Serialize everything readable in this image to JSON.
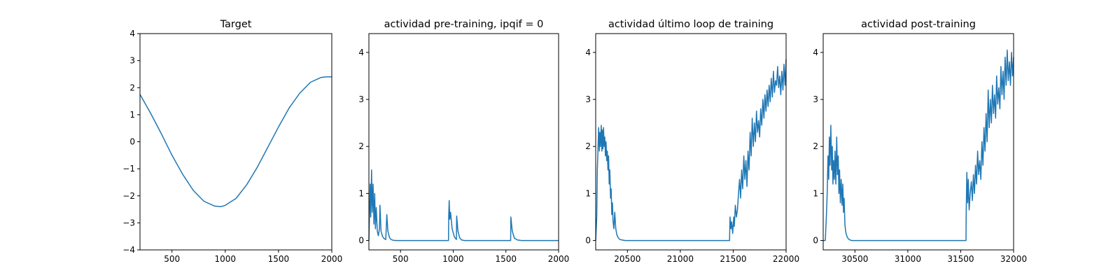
{
  "chart_data": [
    {
      "type": "line",
      "title": "Target",
      "xlim": [
        200,
        2000
      ],
      "ylim": [
        -4,
        4
      ],
      "xticks": [
        500,
        1000,
        1500,
        2000
      ],
      "yticks": [
        -4,
        -3,
        -2,
        -1,
        0,
        1,
        2,
        3,
        4
      ],
      "series": [
        {
          "color": "#1f77b4",
          "x": [
            200,
            300,
            400,
            500,
            600,
            700,
            800,
            900,
            960,
            1000,
            1100,
            1200,
            1300,
            1400,
            1500,
            1600,
            1700,
            1800,
            1900,
            1950,
            2000
          ],
          "y": [
            1.75,
            1.05,
            0.3,
            -0.5,
            -1.2,
            -1.8,
            -2.2,
            -2.38,
            -2.4,
            -2.35,
            -2.1,
            -1.6,
            -0.95,
            -0.2,
            0.55,
            1.25,
            1.8,
            2.2,
            2.38,
            2.4,
            2.4
          ]
        }
      ]
    },
    {
      "type": "line",
      "title": "actividad pre-training, ipqif = 0",
      "xlim": [
        200,
        2000
      ],
      "ylim": [
        -0.2,
        4.4
      ],
      "xticks": [
        500,
        1000,
        1500,
        2000
      ],
      "yticks": [
        0,
        1,
        2,
        3,
        4
      ],
      "series": [
        {
          "color": "#1f77b4",
          "x": [
            200,
            205,
            212,
            218,
            225,
            232,
            240,
            248,
            255,
            262,
            270,
            280,
            290,
            300,
            305,
            315,
            330,
            345,
            360,
            370,
            380,
            395,
            410,
            430,
            460,
            500,
            600,
            700,
            800,
            900,
            955,
            957,
            962,
            968,
            975,
            990,
            1010,
            1030,
            1033,
            1045,
            1060,
            1080,
            1110,
            1150,
            1300,
            1450,
            1545,
            1547,
            1560,
            1580,
            1610,
            1650,
            1800,
            1900,
            2000
          ],
          "y": [
            0,
            0.5,
            1.2,
            0.5,
            1.5,
            0.6,
            1.2,
            0.35,
            1.0,
            0.25,
            0.7,
            0.2,
            0.1,
            0.25,
            0.75,
            0.2,
            0.08,
            0.04,
            0.02,
            0.55,
            0.2,
            0.06,
            0.02,
            0.005,
            0,
            0,
            0,
            0,
            0,
            0,
            0,
            0.5,
            0.85,
            0.45,
            0.6,
            0.25,
            0.08,
            0.02,
            0.52,
            0.2,
            0.06,
            0.01,
            0,
            0,
            0,
            0,
            0,
            0.5,
            0.2,
            0.05,
            0.01,
            0,
            0,
            0,
            0
          ]
        }
      ]
    },
    {
      "type": "line",
      "title": "actividad último loop de training",
      "xlim": [
        20200,
        22000
      ],
      "ylim": [
        -0.2,
        4.4
      ],
      "xticks": [
        20500,
        21000,
        21500,
        22000
      ],
      "yticks": [
        0,
        1,
        2,
        3,
        4
      ],
      "series": [
        {
          "color": "#1f77b4",
          "x": [
            20200,
            20210,
            20215,
            20220,
            20228,
            20235,
            20240,
            20245,
            20252,
            20258,
            20262,
            20268,
            20274,
            20280,
            20286,
            20292,
            20298,
            20304,
            20310,
            20316,
            20322,
            20328,
            20334,
            20340,
            20346,
            20352,
            20358,
            20364,
            20372,
            20380,
            20390,
            20400,
            20415,
            20430,
            20450,
            20480,
            20520,
            20600,
            20800,
            21000,
            21200,
            21400,
            21465,
            21470,
            21478,
            21485,
            21495,
            21505,
            21510,
            21520,
            21530,
            21540,
            21550,
            21560,
            21570,
            21580,
            21590,
            21600,
            21610,
            21620,
            21630,
            21640,
            21650,
            21660,
            21670,
            21680,
            21690,
            21700,
            21710,
            21720,
            21730,
            21740,
            21750,
            21760,
            21770,
            21780,
            21790,
            21800,
            21810,
            21820,
            21830,
            21840,
            21850,
            21860,
            21870,
            21880,
            21890,
            21900,
            21910,
            21920,
            21930,
            21940,
            21950,
            21960,
            21970,
            21980,
            21990,
            22000
          ],
          "y": [
            0,
            0.5,
            1.5,
            1.8,
            2.4,
            1.9,
            2.3,
            2.0,
            2.45,
            1.9,
            2.35,
            1.95,
            2.4,
            2.0,
            2.2,
            1.8,
            2.1,
            1.7,
            1.9,
            1.5,
            1.8,
            1.2,
            1.5,
            0.9,
            1.1,
            0.55,
            0.8,
            0.4,
            0.25,
            0.6,
            0.25,
            0.12,
            0.05,
            0.02,
            0.01,
            0,
            0,
            0,
            0,
            0,
            0,
            0,
            0,
            0.5,
            0.25,
            0.4,
            0.15,
            0.5,
            0.3,
            0.75,
            0.5,
            0.65,
            1.0,
            1.3,
            0.9,
            1.5,
            1.1,
            1.8,
            1.3,
            1.7,
            1.15,
            1.9,
            1.5,
            2.3,
            1.8,
            2.6,
            2.0,
            2.5,
            2.1,
            2.75,
            2.3,
            2.55,
            2.2,
            2.8,
            2.45,
            3.0,
            2.6,
            3.1,
            2.75,
            3.2,
            2.85,
            3.3,
            2.95,
            3.45,
            3.05,
            3.6,
            3.15,
            3.4,
            3.3,
            3.7,
            3.25,
            3.5,
            3.1,
            3.6,
            3.2,
            3.75,
            3.3,
            3.85
          ]
        }
      ]
    },
    {
      "type": "line",
      "title": "actividad post-training",
      "xlim": [
        30200,
        32000
      ],
      "ylim": [
        -0.2,
        4.4
      ],
      "xticks": [
        30500,
        31000,
        31500,
        32000
      ],
      "yticks": [
        0,
        1,
        2,
        3,
        4
      ],
      "series": [
        {
          "color": "#1f77b4",
          "x": [
            30200,
            30220,
            30230,
            30238,
            30245,
            30252,
            30258,
            30265,
            30272,
            30280,
            30286,
            30292,
            30298,
            30305,
            30312,
            30320,
            30328,
            30335,
            30342,
            30348,
            30355,
            30362,
            30370,
            30378,
            30385,
            30392,
            30398,
            30405,
            30412,
            30420,
            30430,
            30440,
            30455,
            30470,
            30490,
            30520,
            30600,
            30800,
            31000,
            31200,
            31400,
            31550,
            31552,
            31558,
            31565,
            31572,
            31580,
            31590,
            31600,
            31610,
            31620,
            31630,
            31640,
            31650,
            31660,
            31670,
            31680,
            31690,
            31700,
            31710,
            31720,
            31730,
            31740,
            31750,
            31760,
            31770,
            31780,
            31790,
            31800,
            31810,
            31820,
            31830,
            31840,
            31850,
            31860,
            31870,
            31880,
            31890,
            31900,
            31910,
            31920,
            31930,
            31940,
            31950,
            31960,
            31970,
            31980,
            31990,
            32000
          ],
          "y": [
            0,
            0,
            0.5,
            1.0,
            1.8,
            1.3,
            2.2,
            1.6,
            2.45,
            1.5,
            2.0,
            1.2,
            1.7,
            1.3,
            1.9,
            1.2,
            2.2,
            1.4,
            1.8,
            1.0,
            1.5,
            0.8,
            1.3,
            0.75,
            1.2,
            0.6,
            0.9,
            0.35,
            0.2,
            0.12,
            0.06,
            0.03,
            0.01,
            0,
            0,
            0,
            0,
            0,
            0,
            0,
            0,
            0,
            0.6,
            1.45,
            0.8,
            1.3,
            0.65,
            1.0,
            1.25,
            0.85,
            1.4,
            1.0,
            1.6,
            1.2,
            1.9,
            1.4,
            1.7,
            1.3,
            2.1,
            1.6,
            2.4,
            1.9,
            2.7,
            2.1,
            3.2,
            2.4,
            3.0,
            2.5,
            3.3,
            2.7,
            3.1,
            2.6,
            3.5,
            2.9,
            3.25,
            2.8,
            3.7,
            3.1,
            3.6,
            3.0,
            3.9,
            3.3,
            4.05,
            3.4,
            3.8,
            3.3,
            4.0,
            3.5,
            3.9
          ]
        }
      ]
    }
  ]
}
